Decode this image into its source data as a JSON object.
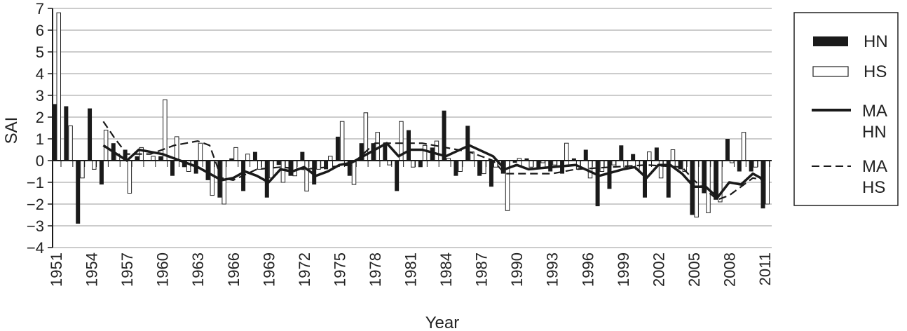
{
  "chart_data": {
    "type": "bar",
    "xlabel": "Year",
    "ylabel": "SAI",
    "ylim": [
      -4,
      7
    ],
    "yticks": [
      "7",
      "6",
      "5",
      "4",
      "3",
      "2",
      "1",
      "0",
      "−1",
      "−2",
      "−3",
      "−4"
    ],
    "xticks": [
      "1951",
      "1954",
      "1957",
      "1960",
      "1963",
      "1966",
      "1969",
      "1972",
      "1975",
      "1978",
      "1981",
      "1984",
      "1987",
      "1990",
      "1993",
      "1996",
      "1999",
      "2002",
      "2005",
      "2008",
      "2011"
    ],
    "x_start": 1951,
    "x_end": 2011,
    "grid": true,
    "legend_position": "right",
    "legend": {
      "hn": "HN",
      "hs": "HS",
      "ma_hn": [
        "MA",
        "HN"
      ],
      "ma_hs": [
        "MA",
        "HS"
      ]
    },
    "years": [
      1951,
      1952,
      1953,
      1954,
      1955,
      1956,
      1957,
      1958,
      1959,
      1960,
      1961,
      1962,
      1963,
      1964,
      1965,
      1966,
      1967,
      1968,
      1969,
      1970,
      1971,
      1972,
      1973,
      1974,
      1975,
      1976,
      1977,
      1978,
      1979,
      1980,
      1981,
      1982,
      1983,
      1984,
      1985,
      1986,
      1987,
      1988,
      1989,
      1990,
      1991,
      1992,
      1993,
      1994,
      1995,
      1996,
      1997,
      1998,
      1999,
      2000,
      2001,
      2002,
      2003,
      2004,
      2005,
      2006,
      2007,
      2008,
      2009,
      2010,
      2011
    ],
    "series": [
      {
        "name": "HN",
        "kind": "bar",
        "color": "#1a1a1a",
        "values": [
          2.6,
          2.5,
          -2.9,
          2.4,
          -1.1,
          0.8,
          0.5,
          0.2,
          0.0,
          0.2,
          -0.7,
          -0.3,
          -0.6,
          -0.9,
          -1.7,
          0.1,
          -1.4,
          0.4,
          -1.7,
          -0.2,
          -0.7,
          0.4,
          -1.1,
          -0.4,
          1.1,
          -0.7,
          0.8,
          0.8,
          0.8,
          -1.4,
          1.4,
          -0.3,
          0.6,
          2.3,
          -0.7,
          1.6,
          -0.7,
          -1.2,
          -0.6,
          -0.1,
          0.1,
          -0.4,
          -0.5,
          -0.6,
          0.1,
          0.5,
          -2.1,
          -1.3,
          0.7,
          0.3,
          -1.7,
          0.6,
          -1.7,
          -0.4,
          -2.5,
          -1.5,
          -1.8,
          1.0,
          -0.5,
          -0.5,
          -2.2
        ]
      },
      {
        "name": "HS",
        "kind": "bar",
        "color": "#ffffff",
        "values": [
          6.8,
          1.6,
          -0.8,
          -0.4,
          1.4,
          0.3,
          -1.5,
          0.6,
          0.2,
          2.8,
          1.1,
          -0.5,
          0.8,
          -1.6,
          -2.0,
          0.6,
          0.3,
          -0.4,
          -0.8,
          -1.0,
          -0.7,
          -1.4,
          -0.4,
          0.2,
          1.8,
          -1.1,
          2.2,
          1.3,
          -0.2,
          1.8,
          -0.3,
          0.7,
          0.9,
          0.1,
          -0.5,
          0.4,
          -0.6,
          -0.3,
          -2.3,
          0.1,
          -0.3,
          -0.1,
          -0.2,
          0.8,
          -0.4,
          -0.8,
          -0.5,
          -0.2,
          -0.3,
          -0.4,
          0.4,
          -0.8,
          0.5,
          -0.5,
          -2.6,
          -2.4,
          -1.9,
          -0.1,
          1.3,
          -0.3,
          -2.0
        ]
      },
      {
        "name": "MA HN",
        "kind": "line",
        "style": "solid",
        "x": [
          1955,
          1957,
          1958,
          1960,
          1963,
          1965,
          1966,
          1967,
          1968,
          1969,
          1970,
          1971,
          1972,
          1973,
          1974,
          1975,
          1976,
          1977,
          1979,
          1980,
          1981,
          1982,
          1984,
          1986,
          1988,
          1989,
          1990,
          1991,
          1993,
          1995,
          1997,
          1999,
          2000,
          2001,
          2002,
          2003,
          2004,
          2005,
          2006,
          2007,
          2008,
          2009,
          2010,
          2011
        ],
        "values": [
          0.7,
          0.0,
          0.5,
          0.3,
          -0.3,
          -0.9,
          -0.8,
          -0.5,
          -0.7,
          -1.0,
          -0.4,
          -0.5,
          -0.3,
          -0.7,
          -0.5,
          -0.2,
          -0.1,
          0.2,
          0.8,
          0.2,
          0.5,
          0.5,
          0.2,
          0.7,
          0.2,
          -0.4,
          -0.2,
          -0.4,
          -0.3,
          -0.2,
          -0.7,
          -0.4,
          -0.3,
          -0.8,
          -0.2,
          -0.2,
          -0.6,
          -1.2,
          -1.2,
          -1.7,
          -1.0,
          -1.1,
          -0.6,
          -0.9
        ]
      },
      {
        "name": "MA HS",
        "kind": "line",
        "style": "dashed",
        "x": [
          1955,
          1956,
          1957,
          1959,
          1961,
          1963,
          1964,
          1965,
          1966,
          1968,
          1970,
          1972,
          1974,
          1976,
          1978,
          1980,
          1982,
          1984,
          1986,
          1988,
          1989,
          1993,
          1995,
          1998,
          2001,
          2004,
          2005,
          2007,
          2008,
          2010,
          2011
        ],
        "values": [
          1.8,
          1.0,
          0.3,
          0.3,
          0.7,
          0.9,
          0.7,
          -0.8,
          -0.9,
          -0.4,
          -0.3,
          -0.4,
          -0.3,
          -0.2,
          0.8,
          0.8,
          0.8,
          0.6,
          0.4,
          0.0,
          -0.6,
          -0.6,
          -0.4,
          -0.3,
          -0.2,
          -0.3,
          -0.9,
          -1.8,
          -1.6,
          -0.8,
          -0.9
        ]
      }
    ]
  }
}
